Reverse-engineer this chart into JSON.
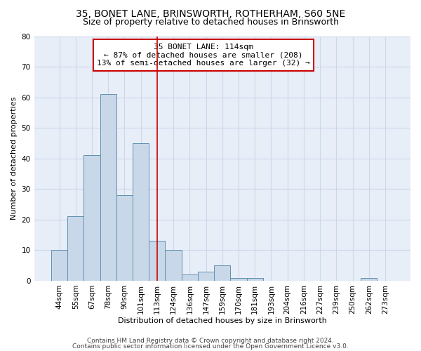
{
  "title1": "35, BONET LANE, BRINSWORTH, ROTHERHAM, S60 5NE",
  "title2": "Size of property relative to detached houses in Brinsworth",
  "xlabel": "Distribution of detached houses by size in Brinsworth",
  "ylabel": "Number of detached properties",
  "categories": [
    "44sqm",
    "55sqm",
    "67sqm",
    "78sqm",
    "90sqm",
    "101sqm",
    "113sqm",
    "124sqm",
    "136sqm",
    "147sqm",
    "159sqm",
    "170sqm",
    "181sqm",
    "193sqm",
    "204sqm",
    "216sqm",
    "227sqm",
    "239sqm",
    "250sqm",
    "262sqm",
    "273sqm"
  ],
  "values": [
    10,
    21,
    41,
    61,
    28,
    45,
    13,
    10,
    2,
    3,
    5,
    1,
    1,
    0,
    0,
    0,
    0,
    0,
    0,
    1,
    0
  ],
  "bar_color": "#c8d8e8",
  "bar_edge_color": "#6090b0",
  "annotation_box_text": "35 BONET LANE: 114sqm\n← 87% of detached houses are smaller (208)\n13% of semi-detached houses are larger (32) →",
  "annotation_box_color": "#ffffff",
  "annotation_box_edge_color": "#cc0000",
  "vline_color": "#cc0000",
  "vline_x_index": 6,
  "ylim": [
    0,
    80
  ],
  "yticks": [
    0,
    10,
    20,
    30,
    40,
    50,
    60,
    70,
    80
  ],
  "grid_color": "#ccd8ea",
  "background_color": "#e8eef8",
  "footer1": "Contains HM Land Registry data © Crown copyright and database right 2024.",
  "footer2": "Contains public sector information licensed under the Open Government Licence v3.0.",
  "title1_fontsize": 10,
  "title2_fontsize": 9,
  "axis_fontsize": 8,
  "tick_fontsize": 7.5,
  "annotation_fontsize": 8,
  "footer_fontsize": 6.5
}
